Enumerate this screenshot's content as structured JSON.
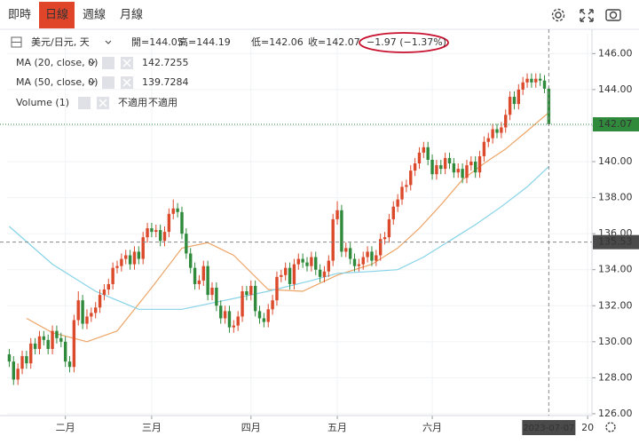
{
  "toolbar": {
    "tabs": [
      "即時",
      "日線",
      "週線",
      "月線"
    ],
    "active": 1
  },
  "chart_data": {
    "type": "candlestick",
    "symbol": "美元/日元, 天",
    "ohlc_legend": [
      "開=144.05",
      "高=144.19",
      "低=142.06",
      "收=142.07"
    ],
    "change": "−1.97 (−1.37%)",
    "up_color": "#dc4a2c",
    "down_color": "#2f8a3c",
    "open": [
      129.3,
      128.9,
      127.9,
      128.5,
      129.2,
      128.8,
      129.9,
      129.6,
      130.3,
      130.1,
      129.6,
      130.6,
      130.2,
      130.0,
      128.9,
      128.6,
      131.2,
      132.3,
      131.0,
      131.4,
      131.6,
      131.9,
      132.6,
      132.9,
      133.2,
      134.1,
      134.2,
      134.6,
      134.8,
      134.3,
      135.0,
      134.6,
      135.8,
      136.3,
      136.1,
      136.2,
      135.6,
      136.1,
      137.1,
      137.4,
      137.2,
      136.0,
      134.9,
      134.1,
      133.2,
      133.4,
      134.2,
      132.6,
      133.0,
      132.0,
      131.3,
      131.7,
      130.8,
      130.9,
      131.4,
      132.8,
      132.6,
      133.1,
      131.7,
      131.3,
      131.1,
      131.8,
      132.3,
      133.6,
      133.7,
      134.1,
      133.2,
      134.3,
      134.6,
      134.4,
      134.2,
      134.7,
      134.0,
      133.6,
      133.9,
      134.5,
      136.8,
      137.3,
      135.0,
      135.2,
      134.6,
      134.2,
      134.3,
      134.7,
      135.0,
      134.5,
      134.8,
      135.7,
      135.8,
      136.8,
      137.5,
      137.9,
      138.6,
      138.7,
      139.5,
      139.9,
      140.5,
      140.8,
      140.1,
      139.3,
      139.8,
      139.6,
      140.2,
      139.9,
      139.4,
      139.6,
      139.1,
      139.8,
      140.0,
      139.4,
      140.3,
      141.1,
      141.3,
      141.8,
      141.6,
      141.9,
      142.6,
      143.6,
      143.2,
      144.0,
      144.4,
      144.6,
      144.4,
      144.6,
      144.5,
      144.05
    ],
    "high": [
      129.6,
      129.2,
      128.8,
      129.5,
      129.5,
      130.2,
      130.2,
      130.6,
      130.6,
      130.4,
      130.9,
      130.9,
      130.5,
      130.3,
      129.2,
      131.5,
      132.8,
      132.6,
      131.8,
      131.9,
      132.2,
      132.9,
      133.2,
      133.5,
      134.4,
      134.5,
      134.9,
      135.1,
      135.1,
      135.3,
      135.3,
      136.1,
      136.6,
      136.6,
      136.5,
      136.5,
      136.4,
      137.4,
      137.9,
      137.7,
      137.5,
      136.3,
      135.2,
      134.4,
      133.7,
      134.5,
      134.5,
      133.3,
      133.3,
      132.3,
      132.0,
      132.0,
      131.2,
      131.7,
      133.1,
      133.1,
      133.4,
      133.4,
      132.0,
      131.6,
      132.1,
      132.6,
      133.9,
      134.0,
      134.4,
      134.4,
      134.6,
      134.9,
      134.9,
      134.7,
      135.0,
      135.0,
      134.3,
      134.2,
      134.8,
      137.1,
      137.8,
      137.6,
      135.5,
      135.5,
      134.9,
      134.6,
      135.0,
      135.3,
      135.3,
      135.1,
      136.0,
      136.1,
      137.1,
      137.8,
      138.2,
      138.9,
      139.0,
      139.8,
      140.2,
      140.8,
      141.1,
      141.1,
      140.4,
      140.1,
      140.1,
      140.5,
      140.5,
      140.2,
      139.9,
      139.9,
      140.1,
      140.3,
      140.3,
      140.6,
      141.4,
      141.6,
      142.1,
      142.1,
      142.2,
      142.9,
      143.9,
      143.9,
      144.3,
      144.7,
      144.9,
      144.9,
      144.9,
      144.9,
      144.8,
      144.19
    ],
    "low": [
      128.6,
      127.6,
      127.6,
      128.2,
      128.5,
      128.5,
      129.3,
      129.3,
      129.8,
      129.3,
      129.3,
      129.9,
      129.7,
      128.6,
      128.3,
      128.3,
      130.9,
      130.7,
      130.7,
      131.1,
      131.3,
      131.6,
      132.3,
      132.6,
      132.9,
      133.8,
      133.9,
      134.3,
      134.0,
      134.0,
      134.3,
      134.3,
      135.5,
      135.8,
      135.8,
      135.3,
      135.3,
      135.8,
      136.8,
      136.9,
      135.7,
      134.6,
      133.8,
      132.9,
      132.9,
      133.1,
      132.3,
      132.3,
      131.7,
      131.0,
      131.0,
      130.5,
      130.5,
      130.6,
      131.1,
      132.3,
      132.3,
      131.4,
      131.0,
      130.8,
      130.8,
      131.5,
      132.0,
      133.3,
      133.4,
      132.9,
      132.9,
      134.0,
      134.1,
      133.9,
      133.9,
      133.7,
      133.3,
      133.3,
      133.6,
      134.2,
      136.5,
      134.7,
      134.7,
      134.3,
      133.9,
      133.9,
      134.0,
      134.4,
      134.2,
      134.2,
      134.5,
      135.4,
      135.5,
      136.5,
      137.2,
      137.6,
      138.3,
      138.4,
      139.2,
      139.6,
      140.2,
      139.8,
      139.0,
      139.0,
      139.3,
      139.3,
      139.6,
      139.1,
      139.1,
      138.8,
      138.8,
      139.5,
      139.1,
      139.1,
      140.0,
      140.8,
      141.0,
      141.3,
      141.3,
      141.6,
      142.3,
      142.9,
      142.9,
      143.7,
      144.1,
      144.1,
      144.1,
      144.2,
      143.8,
      142.06
    ],
    "close": [
      128.9,
      127.9,
      128.5,
      129.2,
      128.8,
      129.9,
      129.6,
      130.3,
      130.1,
      129.6,
      130.6,
      130.2,
      130.0,
      128.9,
      128.6,
      131.2,
      132.3,
      131.0,
      131.4,
      131.6,
      131.9,
      132.6,
      132.9,
      133.2,
      134.1,
      134.2,
      134.6,
      134.8,
      134.3,
      135.0,
      134.6,
      135.8,
      136.3,
      136.1,
      136.2,
      135.6,
      136.1,
      137.1,
      137.4,
      137.2,
      136.0,
      134.9,
      134.1,
      133.2,
      133.4,
      134.2,
      132.6,
      133.0,
      132.0,
      131.3,
      131.7,
      130.8,
      130.9,
      131.4,
      132.8,
      132.6,
      133.1,
      131.7,
      131.3,
      131.1,
      131.8,
      132.3,
      133.6,
      133.7,
      134.1,
      133.2,
      134.3,
      134.6,
      134.4,
      134.2,
      134.7,
      134.0,
      133.6,
      133.9,
      134.5,
      136.8,
      137.3,
      135.0,
      135.2,
      134.6,
      134.2,
      134.3,
      134.7,
      135.0,
      134.5,
      134.8,
      135.7,
      135.8,
      136.8,
      137.5,
      137.9,
      138.6,
      138.7,
      139.5,
      139.9,
      140.5,
      140.8,
      140.1,
      139.3,
      139.8,
      139.6,
      140.2,
      139.9,
      139.4,
      139.6,
      139.1,
      139.8,
      140.0,
      139.4,
      140.3,
      141.1,
      141.3,
      141.8,
      141.6,
      141.9,
      142.6,
      143.6,
      143.2,
      144.0,
      144.4,
      144.6,
      144.4,
      144.6,
      144.5,
      144.05,
      142.07
    ],
    "xlim": [
      -0.5,
      135
    ],
    "xticks": [
      {
        "value": 13,
        "label": "二月"
      },
      {
        "value": 33,
        "label": "三月"
      },
      {
        "value": 56,
        "label": "四月"
      },
      {
        "value": 76,
        "label": "五月"
      },
      {
        "value": 98,
        "label": "六月"
      },
      {
        "value": 134,
        "label": "20"
      }
    ],
    "ylim": [
      125.9,
      147.1
    ],
    "yticks": [
      {
        "value": 126,
        "label": "126.00"
      },
      {
        "value": 128,
        "label": "128.00"
      },
      {
        "value": 130,
        "label": "130.00"
      },
      {
        "value": 132,
        "label": "132.00"
      },
      {
        "value": 134,
        "label": "134.00"
      },
      {
        "value": 136,
        "label": "136.00"
      },
      {
        "value": 138,
        "label": "138.00"
      },
      {
        "value": 140,
        "label": "140.00"
      },
      {
        "value": 142,
        "label": "142.00"
      },
      {
        "value": 144,
        "label": "144.00"
      },
      {
        "value": 146,
        "label": "146.00"
      }
    ],
    "grid": true,
    "series": [
      {
        "name": "MA (20, close, 0)",
        "color": "#eda567",
        "x": [
          4,
          10,
          18,
          25,
          33,
          40,
          46,
          52,
          60,
          68,
          76,
          84,
          90,
          95,
          100,
          105,
          110,
          115,
          120,
          125
        ],
        "values": [
          131.3,
          130.5,
          130.0,
          130.6,
          133.0,
          135.2,
          135.5,
          134.8,
          132.9,
          132.8,
          133.7,
          134.3,
          135.2,
          136.3,
          137.6,
          139.0,
          139.9,
          140.7,
          141.7,
          142.7255
        ]
      },
      {
        "name": "MA (50, close, 0)",
        "color": "#86d3e8",
        "x": [
          0,
          10,
          20,
          30,
          40,
          50,
          60,
          70,
          76,
          84,
          90,
          96,
          102,
          108,
          114,
          120,
          125
        ],
        "values": [
          136.4,
          134.3,
          132.8,
          131.8,
          131.8,
          132.3,
          132.8,
          133.4,
          133.8,
          133.9,
          134.0,
          134.7,
          135.6,
          136.5,
          137.5,
          138.6,
          139.7284
        ]
      }
    ],
    "volume": {
      "name": "Volume (1)",
      "value_labels": [
        "不適用",
        "不適用"
      ]
    },
    "crosshair": {
      "y": 135.53,
      "x_label": "2023-07-07"
    }
  }
}
